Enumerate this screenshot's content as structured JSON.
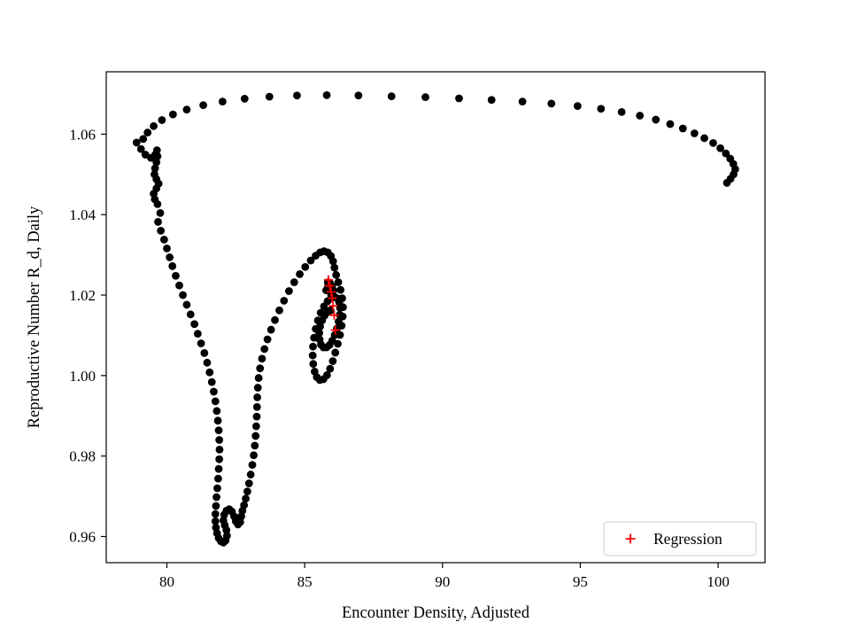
{
  "chart_data": {
    "type": "scatter",
    "title": "",
    "xlabel": "Encounter Density, Adjusted",
    "ylabel": "Reproductive Number R_d, Daily",
    "xlim": [
      77.8,
      101.7
    ],
    "ylim": [
      0.9535,
      1.0755
    ],
    "grid": false,
    "x_ticks": {
      "values": [
        80,
        85,
        90,
        95,
        100
      ],
      "labels": [
        "80",
        "85",
        "90",
        "95",
        "100"
      ]
    },
    "y_ticks": {
      "values": [
        0.96,
        0.98,
        1.0,
        1.02,
        1.04,
        1.06
      ],
      "labels": [
        "0.96",
        "0.98",
        "1.00",
        "1.02",
        "1.04",
        "1.06"
      ]
    },
    "colors": {
      "trajectory": "#000000",
      "regression": "#ff0000",
      "frame": "#000000",
      "legend_border": "#cccccc"
    },
    "legend": {
      "position": "lower right",
      "entries": [
        {
          "label": "Regression",
          "marker": "plus",
          "color": "#ff0000"
        }
      ]
    },
    "series": [
      {
        "name": "trajectory",
        "marker": "circle",
        "color": "#000000",
        "points": [
          [
            100.32,
            1.0479
          ],
          [
            100.45,
            1.0489
          ],
          [
            100.56,
            1.05
          ],
          [
            100.62,
            1.0513
          ],
          [
            100.55,
            1.0526
          ],
          [
            100.44,
            1.0539
          ],
          [
            100.28,
            1.0552
          ],
          [
            100.08,
            1.0565
          ],
          [
            99.82,
            1.0578
          ],
          [
            99.5,
            1.059
          ],
          [
            99.14,
            1.0602
          ],
          [
            98.72,
            1.0614
          ],
          [
            98.26,
            1.0625
          ],
          [
            97.74,
            1.0636
          ],
          [
            97.16,
            1.0646
          ],
          [
            96.5,
            1.0655
          ],
          [
            95.75,
            1.0663
          ],
          [
            94.9,
            1.067
          ],
          [
            93.95,
            1.0676
          ],
          [
            92.9,
            1.0681
          ],
          [
            91.78,
            1.0685
          ],
          [
            90.6,
            1.0689
          ],
          [
            89.38,
            1.0692
          ],
          [
            88.15,
            1.0694
          ],
          [
            86.95,
            1.0696
          ],
          [
            85.8,
            1.0697
          ],
          [
            84.72,
            1.0696
          ],
          [
            83.72,
            1.0693
          ],
          [
            82.82,
            1.0688
          ],
          [
            82.02,
            1.0681
          ],
          [
            81.32,
            1.0672
          ],
          [
            80.72,
            1.0661
          ],
          [
            80.22,
            1.0649
          ],
          [
            79.82,
            1.0635
          ],
          [
            79.52,
            1.062
          ],
          [
            79.3,
            1.0604
          ],
          [
            79.14,
            1.0588
          ],
          [
            78.9,
            1.0579
          ],
          [
            79.06,
            1.0563
          ],
          [
            79.22,
            1.0549
          ],
          [
            79.42,
            1.0541
          ],
          [
            79.58,
            1.0549
          ],
          [
            79.64,
            1.056
          ],
          [
            79.66,
            1.0545
          ],
          [
            79.62,
            1.053
          ],
          [
            79.57,
            1.0515
          ],
          [
            79.55,
            1.05
          ],
          [
            79.62,
            1.0488
          ],
          [
            79.7,
            1.0477
          ],
          [
            79.62,
            1.0465
          ],
          [
            79.52,
            1.0452
          ],
          [
            79.56,
            1.0438
          ],
          [
            79.66,
            1.0426
          ],
          [
            79.76,
            1.0404
          ],
          [
            79.68,
            1.0382
          ],
          [
            79.78,
            1.036
          ],
          [
            79.9,
            1.0338
          ],
          [
            80.0,
            1.0316
          ],
          [
            80.1,
            1.0294
          ],
          [
            80.2,
            1.0272
          ],
          [
            80.32,
            1.0248
          ],
          [
            80.45,
            1.0224
          ],
          [
            80.58,
            1.02
          ],
          [
            80.72,
            1.0176
          ],
          [
            80.86,
            1.0152
          ],
          [
            81.0,
            1.0128
          ],
          [
            81.12,
            1.0104
          ],
          [
            81.24,
            1.008
          ],
          [
            81.36,
            1.0056
          ],
          [
            81.46,
            1.0032
          ],
          [
            81.55,
            1.0008
          ],
          [
            81.63,
            0.9984
          ],
          [
            81.7,
            0.996
          ],
          [
            81.76,
            0.9936
          ],
          [
            81.81,
            0.9912
          ],
          [
            81.85,
            0.9888
          ],
          [
            81.88,
            0.9864
          ],
          [
            81.9,
            0.984
          ],
          [
            81.91,
            0.9816
          ],
          [
            81.9,
            0.9792
          ],
          [
            81.88,
            0.9768
          ],
          [
            81.86,
            0.9744
          ],
          [
            81.83,
            0.972
          ],
          [
            81.8,
            0.9698
          ],
          [
            81.78,
            0.9676
          ],
          [
            81.76,
            0.9656
          ],
          [
            81.76,
            0.9638
          ],
          [
            81.78,
            0.9622
          ],
          [
            81.82,
            0.9608
          ],
          [
            81.88,
            0.9596
          ],
          [
            81.96,
            0.9588
          ],
          [
            82.05,
            0.9585
          ],
          [
            82.13,
            0.959
          ],
          [
            82.18,
            0.9602
          ],
          [
            82.16,
            0.9616
          ],
          [
            82.1,
            0.9628
          ],
          [
            82.05,
            0.964
          ],
          [
            82.08,
            0.9654
          ],
          [
            82.16,
            0.9664
          ],
          [
            82.26,
            0.9668
          ],
          [
            82.36,
            0.9662
          ],
          [
            82.44,
            0.965
          ],
          [
            82.5,
            0.9638
          ],
          [
            82.58,
            0.963
          ],
          [
            82.66,
            0.9636
          ],
          [
            82.7,
            0.965
          ],
          [
            82.74,
            0.9664
          ],
          [
            82.8,
            0.9678
          ],
          [
            82.86,
            0.9694
          ],
          [
            82.92,
            0.9712
          ],
          [
            82.98,
            0.9732
          ],
          [
            83.04,
            0.9754
          ],
          [
            83.1,
            0.9778
          ],
          [
            83.15,
            0.9802
          ],
          [
            83.19,
            0.9826
          ],
          [
            83.22,
            0.985
          ],
          [
            83.24,
            0.9874
          ],
          [
            83.26,
            0.9898
          ],
          [
            83.27,
            0.9922
          ],
          [
            83.28,
            0.9946
          ],
          [
            83.3,
            0.997
          ],
          [
            83.33,
            0.9994
          ],
          [
            83.38,
            1.0018
          ],
          [
            83.45,
            1.0042
          ],
          [
            83.54,
            1.0066
          ],
          [
            83.65,
            1.009
          ],
          [
            83.78,
            1.0114
          ],
          [
            83.92,
            1.0138
          ],
          [
            84.08,
            1.0162
          ],
          [
            84.25,
            1.0186
          ],
          [
            84.43,
            1.021
          ],
          [
            84.62,
            1.0232
          ],
          [
            84.82,
            1.0252
          ],
          [
            85.02,
            1.027
          ],
          [
            85.22,
            1.0286
          ],
          [
            85.4,
            1.0298
          ],
          [
            85.56,
            1.0306
          ],
          [
            85.7,
            1.0309
          ],
          [
            85.84,
            1.0306
          ],
          [
            85.95,
            1.0297
          ],
          [
            86.03,
            1.0284
          ],
          [
            86.08,
            1.0268
          ],
          [
            86.14,
            1.025
          ],
          [
            86.22,
            1.0232
          ],
          [
            86.3,
            1.0213
          ],
          [
            86.36,
            1.0192
          ],
          [
            86.39,
            1.017
          ],
          [
            86.38,
            1.0147
          ],
          [
            86.34,
            1.0124
          ],
          [
            86.28,
            1.0101
          ],
          [
            86.2,
            1.0079
          ],
          [
            86.11,
            1.0057
          ],
          [
            86.02,
            1.0036
          ],
          [
            85.92,
            1.0017
          ],
          [
            85.81,
            1.0001
          ],
          [
            85.68,
            0.9991
          ],
          [
            85.55,
            0.9989
          ],
          [
            85.44,
            0.9996
          ],
          [
            85.36,
            1.001
          ],
          [
            85.31,
            1.0029
          ],
          [
            85.29,
            1.005
          ],
          [
            85.3,
            1.0072
          ],
          [
            85.34,
            1.0094
          ],
          [
            85.4,
            1.0116
          ],
          [
            85.48,
            1.0137
          ],
          [
            85.58,
            1.0156
          ],
          [
            85.7,
            1.0172
          ],
          [
            85.83,
            1.0185
          ],
          [
            85.96,
            1.0193
          ],
          [
            86.08,
            1.0196
          ],
          [
            86.18,
            1.0192
          ],
          [
            86.25,
            1.0182
          ],
          [
            86.28,
            1.0168
          ],
          [
            86.27,
            1.0151
          ],
          [
            86.23,
            1.0134
          ],
          [
            86.17,
            1.0117
          ],
          [
            86.09,
            1.0101
          ],
          [
            86.0,
            1.0087
          ],
          [
            85.9,
            1.0076
          ],
          [
            85.79,
            1.007
          ],
          [
            85.68,
            1.007
          ],
          [
            85.59,
            1.0077
          ],
          [
            85.54,
            1.009
          ],
          [
            85.53,
            1.0106
          ],
          [
            85.56,
            1.0122
          ],
          [
            85.63,
            1.0137
          ],
          [
            85.72,
            1.0149
          ],
          [
            85.83,
            1.0158
          ],
          [
            85.94,
            1.0162
          ],
          [
            85.78,
            1.0212
          ],
          [
            85.85,
            1.0222
          ],
          [
            85.92,
            1.023
          ],
          [
            85.99,
            1.0222
          ],
          [
            85.9,
            1.021
          ],
          [
            85.96,
            1.0201
          ],
          [
            86.04,
            1.0212
          ],
          [
            85.84,
            1.0232
          ]
        ]
      },
      {
        "name": "Regression",
        "marker": "plus",
        "color": "#ff0000",
        "points": [
          [
            85.86,
            1.0238
          ],
          [
            85.91,
            1.0223
          ],
          [
            85.96,
            1.0208
          ],
          [
            86.0,
            1.0192
          ],
          [
            86.03,
            1.0173
          ],
          [
            86.07,
            1.015
          ],
          [
            86.11,
            1.0113
          ]
        ]
      }
    ]
  }
}
